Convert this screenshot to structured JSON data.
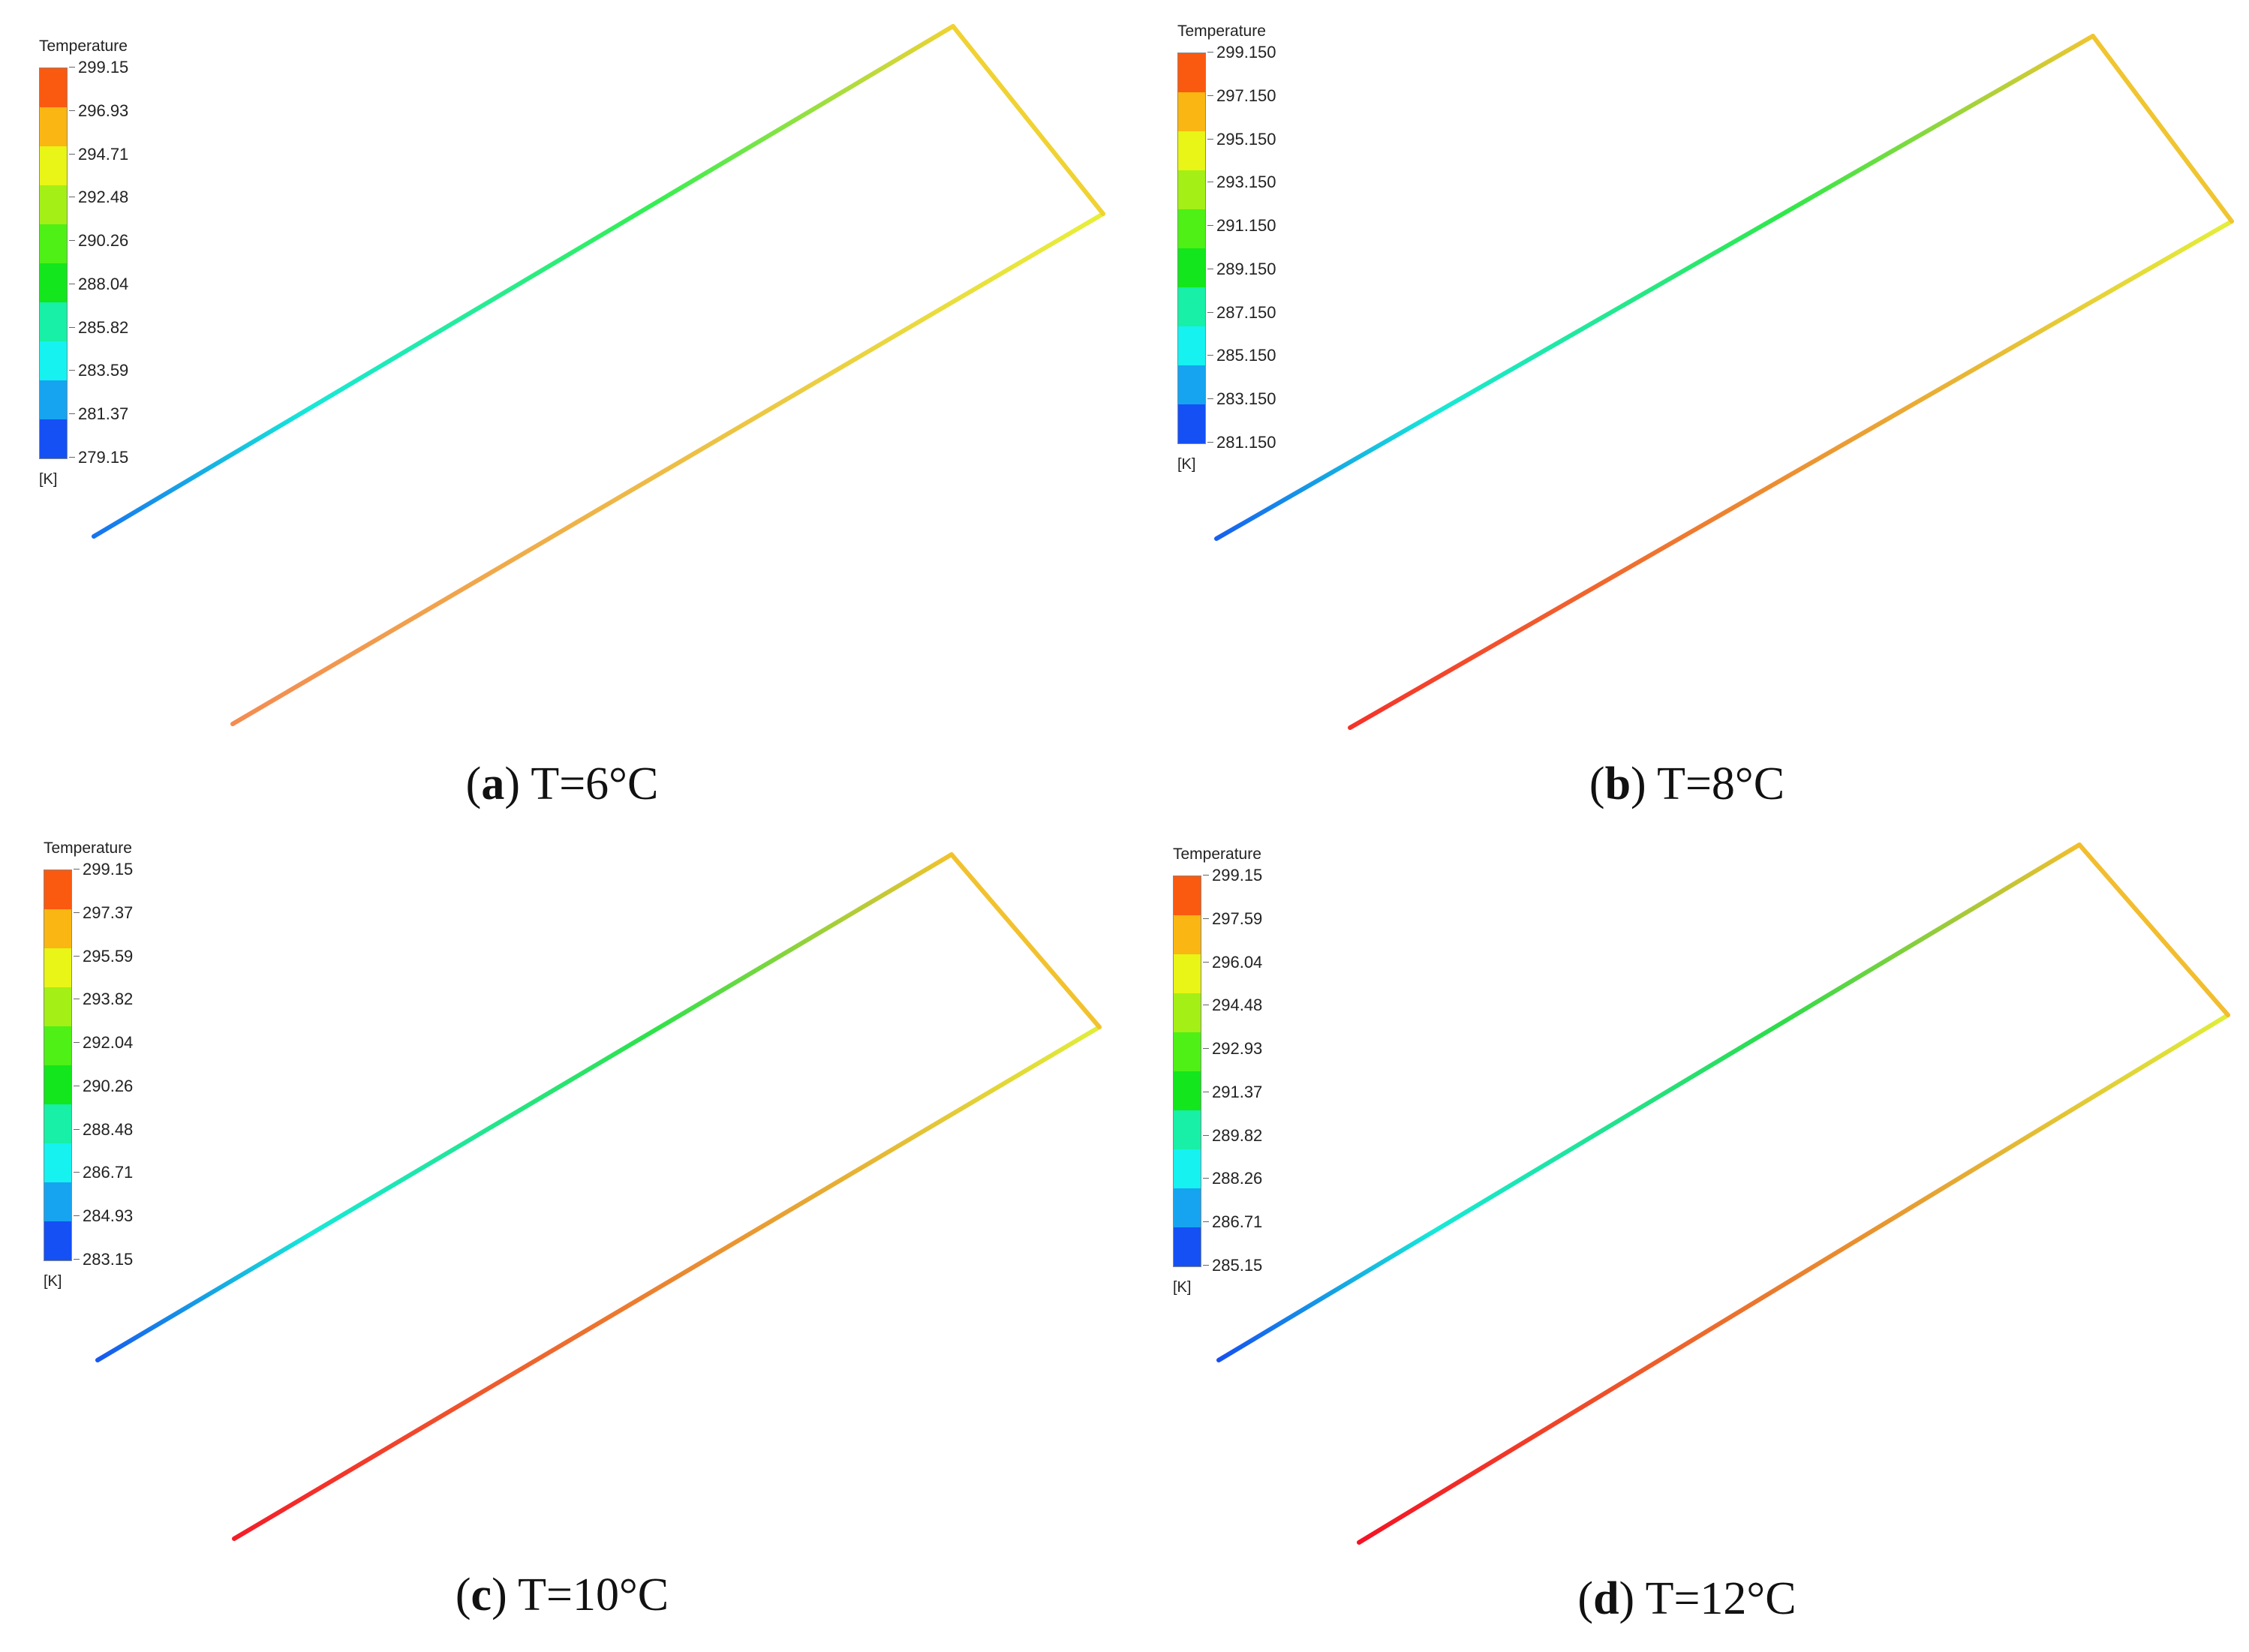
{
  "legend_title": "Temperature",
  "legend_unit": "[K]",
  "band_colors": [
    "#1550f5",
    "#16a4f0",
    "#15f2f0",
    "#17f0a6",
    "#13e61c",
    "#4ef016",
    "#a4ef16",
    "#e8f516",
    "#fab612",
    "#fa5a10"
  ],
  "panels": [
    {
      "letter": "a",
      "caption_rest": "T=6°C",
      "legend_ticks": [
        "299.15",
        "296.93",
        "294.71",
        "292.48",
        "290.26",
        "288.04",
        "285.82",
        "283.59",
        "281.37",
        "279.15"
      ],
      "inlet_color": "#f38b52",
      "corner_color": "#f0d232",
      "bend_color": "#e7ef3a",
      "mid_color": "#34ef52",
      "outlet_color": "#1673f0"
    },
    {
      "letter": "b",
      "caption_rest": "T=8°C",
      "legend_ticks": [
        "299.150",
        "297.150",
        "295.150",
        "293.150",
        "291.150",
        "289.150",
        "287.150",
        "285.150",
        "283.150",
        "281.150"
      ],
      "inlet_color": "#f5322a",
      "corner_color": "#f0c530",
      "bend_color": "#e3ef3a",
      "mid_color": "#2fe84a",
      "outlet_color": "#1660f0"
    },
    {
      "letter": "c",
      "caption_rest": "T=10°C",
      "legend_ticks": [
        "299.15",
        "297.37",
        "295.59",
        "293.82",
        "292.04",
        "290.26",
        "288.48",
        "286.71",
        "284.93",
        "283.15"
      ],
      "inlet_color": "#f51c28",
      "corner_color": "#f2c22e",
      "bend_color": "#e0ee3a",
      "mid_color": "#2ee24a",
      "outlet_color": "#1658f0"
    },
    {
      "letter": "d",
      "caption_rest": "T=12°C",
      "legend_ticks": [
        "299.15",
        "297.59",
        "296.04",
        "294.48",
        "292.93",
        "291.37",
        "289.82",
        "288.26",
        "286.71",
        "285.15"
      ],
      "inlet_color": "#f51224",
      "corner_color": "#f2bd2e",
      "bend_color": "#deee3a",
      "mid_color": "#2cdd4a",
      "outlet_color": "#1650f0"
    }
  ]
}
